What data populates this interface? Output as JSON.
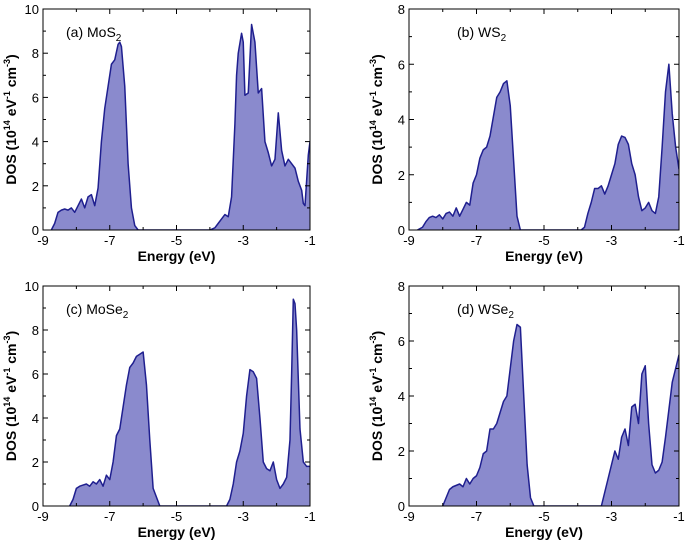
{
  "figure": {
    "fill_color": "#8a8acd",
    "line_color": "#1f1f8f"
  },
  "chart_data": [
    {
      "type": "area",
      "id": "a",
      "title_main": "(a) MoS",
      "title_sub": "2",
      "xlabel": "Energy (eV)",
      "ylabel_pre": "DOS (10",
      "ylabel_exp1": "14",
      "ylabel_mid": " eV",
      "ylabel_exp2": "-1",
      "ylabel_mid2": " cm",
      "ylabel_exp3": "-3",
      "ylabel_post": ")",
      "xlim": [
        -9,
        -1
      ],
      "ylim": [
        0,
        10
      ],
      "xticks": [
        -9,
        -7,
        -5,
        -3,
        -1
      ],
      "xtick_labels": [
        "-9",
        "-7",
        "-5",
        "-3",
        "-1"
      ],
      "yticks": [
        0,
        2,
        4,
        6,
        8,
        10
      ],
      "ytick_labels": [
        "0",
        "2",
        "4",
        "6",
        "8",
        "10"
      ],
      "x": [
        -8.75,
        -8.65,
        -8.55,
        -8.45,
        -8.35,
        -8.25,
        -8.15,
        -8.05,
        -7.95,
        -7.85,
        -7.75,
        -7.65,
        -7.55,
        -7.45,
        -7.35,
        -7.25,
        -7.15,
        -7.05,
        -6.95,
        -6.85,
        -6.75,
        -6.7,
        -6.65,
        -6.55,
        -6.45,
        -6.35,
        -6.25,
        -6.15,
        -6.05,
        -5.0,
        -4.0,
        -3.85,
        -3.75,
        -3.65,
        -3.55,
        -3.45,
        -3.35,
        -3.25,
        -3.2,
        -3.15,
        -3.05,
        -3.0,
        -2.95,
        -2.85,
        -2.75,
        -2.65,
        -2.55,
        -2.45,
        -2.35,
        -2.25,
        -2.15,
        -2.05,
        -1.95,
        -1.85,
        -1.75,
        -1.65,
        -1.55,
        -1.45,
        -1.35,
        -1.25,
        -1.2,
        -1.15,
        -1.05,
        -1.0
      ],
      "values": [
        0,
        0.3,
        0.8,
        0.9,
        0.95,
        0.9,
        1.0,
        0.8,
        1.1,
        1.4,
        1.0,
        1.5,
        1.6,
        1.1,
        1.9,
        4.0,
        5.5,
        6.5,
        7.5,
        7.7,
        8.4,
        8.5,
        8.3,
        6.5,
        3.0,
        1.0,
        0.2,
        0,
        0,
        0,
        0,
        0.1,
        0.3,
        0.5,
        0.7,
        0.6,
        1.5,
        4.8,
        7.0,
        8.0,
        8.9,
        8.5,
        6.1,
        6.2,
        9.3,
        8.5,
        6.2,
        6.4,
        4.0,
        3.5,
        2.9,
        3.2,
        5.3,
        3.6,
        2.9,
        3.2,
        3.0,
        2.8,
        2.2,
        1.8,
        1.2,
        1.1,
        3.4,
        4.0
      ]
    },
    {
      "type": "area",
      "id": "b",
      "title_main": "(b) WS",
      "title_sub": "2",
      "xlabel": "Energy (eV)",
      "ylabel_pre": "DOS (10",
      "ylabel_exp1": "14",
      "ylabel_mid": " eV",
      "ylabel_exp2": "-1",
      "ylabel_mid2": " cm",
      "ylabel_exp3": "-3",
      "ylabel_post": ")",
      "xlim": [
        -9,
        -1
      ],
      "ylim": [
        0,
        8
      ],
      "xticks": [
        -9,
        -7,
        -5,
        -3,
        -1
      ],
      "xtick_labels": [
        "-9",
        "-7",
        "-5",
        "-3",
        "-1"
      ],
      "yticks": [
        0,
        2,
        4,
        6,
        8
      ],
      "ytick_labels": [
        "0",
        "2",
        "4",
        "6",
        "8"
      ],
      "x": [
        -8.75,
        -8.6,
        -8.5,
        -8.4,
        -8.3,
        -8.2,
        -8.1,
        -8.0,
        -7.9,
        -7.8,
        -7.7,
        -7.6,
        -7.5,
        -7.4,
        -7.3,
        -7.2,
        -7.1,
        -7.0,
        -6.9,
        -6.8,
        -6.7,
        -6.6,
        -6.5,
        -6.4,
        -6.3,
        -6.2,
        -6.1,
        -6.0,
        -5.9,
        -5.8,
        -5.7,
        -5.0,
        -3.9,
        -3.8,
        -3.7,
        -3.6,
        -3.5,
        -3.4,
        -3.3,
        -3.2,
        -3.1,
        -3.0,
        -2.9,
        -2.8,
        -2.7,
        -2.6,
        -2.5,
        -2.4,
        -2.3,
        -2.2,
        -2.1,
        -2.0,
        -1.9,
        -1.8,
        -1.7,
        -1.6,
        -1.5,
        -1.4,
        -1.3,
        -1.2,
        -1.1,
        -1.0
      ],
      "values": [
        0,
        0.1,
        0.3,
        0.45,
        0.5,
        0.45,
        0.55,
        0.4,
        0.6,
        0.65,
        0.5,
        0.8,
        0.5,
        0.75,
        1.0,
        0.9,
        1.7,
        2.0,
        2.6,
        2.9,
        3.0,
        3.4,
        4.1,
        4.8,
        5.0,
        5.3,
        5.4,
        4.5,
        2.5,
        0.5,
        0,
        0,
        0,
        0.1,
        0.6,
        1.0,
        1.5,
        1.5,
        1.6,
        1.3,
        1.6,
        2.0,
        2.4,
        3.1,
        3.4,
        3.35,
        3.1,
        2.4,
        2.0,
        1.2,
        0.7,
        0.8,
        1.0,
        0.7,
        0.6,
        1.2,
        3.0,
        5.0,
        6.0,
        4.2,
        3.0,
        2.2
      ]
    },
    {
      "type": "area",
      "id": "c",
      "title_main": "(c) MoSe",
      "title_sub": "2",
      "xlabel": "Energy (eV)",
      "ylabel_pre": "DOS (10",
      "ylabel_exp1": "14",
      "ylabel_mid": " eV",
      "ylabel_exp2": "-1",
      "ylabel_mid2": " cm",
      "ylabel_exp3": "-3",
      "ylabel_post": ")",
      "xlim": [
        -9,
        -1
      ],
      "ylim": [
        0,
        10
      ],
      "xticks": [
        -9,
        -7,
        -5,
        -3,
        -1
      ],
      "xtick_labels": [
        "-9",
        "-7",
        "-5",
        "-3",
        "-1"
      ],
      "yticks": [
        0,
        2,
        4,
        6,
        8,
        10
      ],
      "ytick_labels": [
        "0",
        "2",
        "4",
        "6",
        "8",
        "10"
      ],
      "x": [
        -8.2,
        -8.1,
        -8.0,
        -7.9,
        -7.8,
        -7.7,
        -7.6,
        -7.5,
        -7.4,
        -7.3,
        -7.2,
        -7.1,
        -7.0,
        -6.9,
        -6.8,
        -6.7,
        -6.6,
        -6.5,
        -6.4,
        -6.3,
        -6.2,
        -6.1,
        -6.0,
        -5.9,
        -5.8,
        -5.7,
        -5.5,
        -4.0,
        -3.5,
        -3.4,
        -3.3,
        -3.2,
        -3.1,
        -3.0,
        -2.9,
        -2.8,
        -2.7,
        -2.6,
        -2.5,
        -2.4,
        -2.3,
        -2.2,
        -2.1,
        -2.0,
        -1.9,
        -1.8,
        -1.7,
        -1.6,
        -1.55,
        -1.5,
        -1.45,
        -1.4,
        -1.3,
        -1.2,
        -1.1,
        -1.0
      ],
      "values": [
        0,
        0.3,
        0.8,
        0.9,
        0.95,
        1.0,
        0.9,
        1.1,
        1.0,
        1.2,
        0.9,
        1.4,
        1.2,
        2.0,
        3.2,
        3.5,
        4.5,
        5.5,
        6.3,
        6.5,
        6.8,
        6.9,
        7.0,
        5.5,
        3.0,
        0.8,
        0,
        0,
        0,
        0.3,
        1.0,
        2.0,
        2.5,
        3.3,
        5.0,
        6.2,
        6.1,
        5.8,
        4.0,
        2.0,
        1.7,
        1.6,
        2.0,
        1.2,
        0.8,
        1.0,
        1.3,
        3.0,
        6.0,
        9.4,
        9.2,
        8.0,
        3.5,
        2.0,
        1.8,
        1.8
      ]
    },
    {
      "type": "area",
      "id": "d",
      "title_main": "(d) WSe",
      "title_sub": "2",
      "xlabel": "Energy (eV)",
      "ylabel_pre": "DOS (10",
      "ylabel_exp1": "14",
      "ylabel_mid": " eV",
      "ylabel_exp2": "-1",
      "ylabel_mid2": " cm",
      "ylabel_exp3": "-3",
      "ylabel_post": ")",
      "xlim": [
        -9,
        -1
      ],
      "ylim": [
        0,
        8
      ],
      "xticks": [
        -9,
        -7,
        -5,
        -3,
        -1
      ],
      "xtick_labels": [
        "-9",
        "-7",
        "-5",
        "-3",
        "-1"
      ],
      "yticks": [
        0,
        2,
        4,
        6,
        8
      ],
      "ytick_labels": [
        "0",
        "2",
        "4",
        "6",
        "8"
      ],
      "x": [
        -8.0,
        -7.9,
        -7.8,
        -7.7,
        -7.6,
        -7.5,
        -7.4,
        -7.3,
        -7.2,
        -7.1,
        -7.0,
        -6.9,
        -6.8,
        -6.7,
        -6.6,
        -6.5,
        -6.4,
        -6.3,
        -6.2,
        -6.1,
        -6.0,
        -5.9,
        -5.8,
        -5.7,
        -5.6,
        -5.5,
        -5.4,
        -5.3,
        -5.0,
        -3.3,
        -3.2,
        -3.1,
        -3.0,
        -2.9,
        -2.8,
        -2.7,
        -2.6,
        -2.5,
        -2.4,
        -2.3,
        -2.2,
        -2.1,
        -2.0,
        -1.9,
        -1.8,
        -1.7,
        -1.6,
        -1.5,
        -1.4,
        -1.3,
        -1.2,
        -1.1,
        -1.0
      ],
      "values": [
        0,
        0.3,
        0.6,
        0.7,
        0.75,
        0.8,
        0.7,
        1.0,
        0.8,
        1.0,
        1.1,
        1.4,
        1.9,
        2.0,
        2.8,
        2.8,
        3.0,
        3.4,
        3.8,
        4.0,
        5.0,
        6.0,
        6.6,
        6.5,
        4.0,
        1.5,
        0.3,
        0,
        0,
        0,
        0.5,
        1.0,
        1.5,
        2.0,
        1.7,
        2.5,
        2.8,
        2.2,
        3.6,
        3.7,
        3.0,
        4.8,
        5.1,
        3.0,
        1.5,
        1.2,
        1.3,
        1.6,
        2.5,
        3.5,
        4.5,
        5.0,
        5.5
      ]
    }
  ]
}
